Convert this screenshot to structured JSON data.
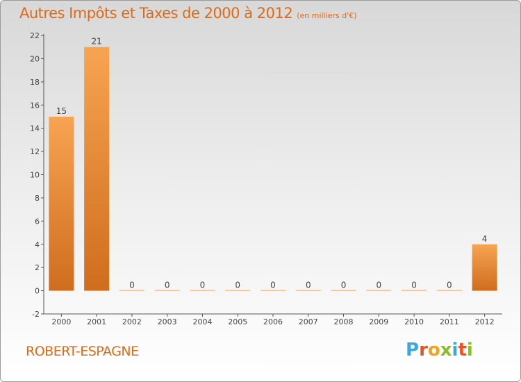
{
  "chart_data": {
    "type": "bar",
    "title": "Autres Impôts et Taxes de 2000 à 2012",
    "subtitle": "(en milliers d'€)",
    "categories": [
      "2000",
      "2001",
      "2002",
      "2003",
      "2004",
      "2005",
      "2006",
      "2007",
      "2008",
      "2009",
      "2010",
      "2011",
      "2012"
    ],
    "values": [
      15,
      21,
      0,
      0,
      0,
      0,
      0,
      0,
      0,
      0,
      0,
      0,
      4
    ],
    "data_labels": [
      "15",
      "21",
      "0",
      "0",
      "0",
      "0",
      "0",
      "0",
      "0",
      "0",
      "0",
      "0",
      "4"
    ],
    "ylim": [
      -2,
      22
    ],
    "yticks": [
      "-2",
      "0",
      "2",
      "4",
      "6",
      "8",
      "10",
      "12",
      "14",
      "16",
      "18",
      "20",
      "22"
    ],
    "grid": false,
    "bar_color_top": "#f7a452",
    "bar_color_bottom": "#cf6d1e"
  },
  "commune": "ROBERT-ESPAGNE",
  "logo": {
    "text": "Proxiti",
    "letters": [
      {
        "ch": "P",
        "color": "#3ba7e0"
      },
      {
        "ch": "r",
        "color": "#e8542a"
      },
      {
        "ch": "o",
        "color": "#f2a21b"
      },
      {
        "ch": "x",
        "color": "#8bbd2b"
      },
      {
        "ch": "i",
        "color": "#3ba7e0"
      },
      {
        "ch": "t",
        "color": "#e8542a"
      },
      {
        "ch": "i",
        "color": "#8bbd2b"
      }
    ]
  },
  "accent_color": "#e06a14"
}
